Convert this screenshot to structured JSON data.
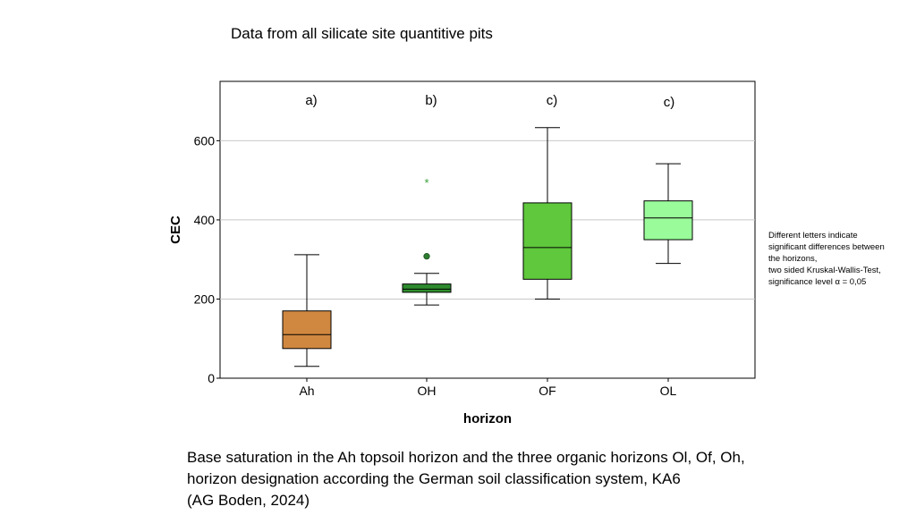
{
  "slide": {
    "title": "Data from all silicate site quantitive pits",
    "note_lines": [
      "Different letters indicate",
      "significant differences between",
      "the horizons,",
      "two sided Kruskal-Wallis-Test,",
      "significance level α = 0,05"
    ],
    "caption_lines": [
      "Base saturation in the Ah topsoil horizon and the three organic horizons Ol, Of, Oh,",
      "horizon designation according the German soil classification system, KA6",
      "(AG Boden, 2024)"
    ]
  },
  "chart_data": {
    "type": "box",
    "xlabel": "horizon",
    "ylabel": "CEC",
    "ylim": [
      0,
      750
    ],
    "yticks": [
      0,
      200,
      400,
      600
    ],
    "grid": "horizontal",
    "categories": [
      "Ah",
      "OH",
      "OF",
      "OL"
    ],
    "boxes": [
      {
        "category": "Ah",
        "min": 30,
        "q1": 75,
        "median": 110,
        "q3": 170,
        "max": 312,
        "color": "#d08840",
        "letter": "a)",
        "outliers": []
      },
      {
        "category": "OH",
        "min": 185,
        "q1": 217,
        "median": 225,
        "q3": 238,
        "max": 265,
        "color": "#2e8b2e",
        "letter": "b)",
        "outliers": [
          {
            "value": 308,
            "marker": "circle"
          },
          {
            "value": 497,
            "marker": "star"
          }
        ]
      },
      {
        "category": "OF",
        "min": 200,
        "q1": 250,
        "median": 330,
        "q3": 443,
        "max": 633,
        "color": "#5fc83c",
        "letter": "c)",
        "outliers": []
      },
      {
        "category": "OL",
        "min": 290,
        "q1": 350,
        "median": 405,
        "q3": 448,
        "max": 542,
        "color": "#99fb99",
        "letter": "c)",
        "outliers": []
      }
    ]
  }
}
